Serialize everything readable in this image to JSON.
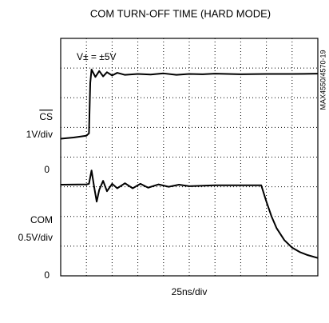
{
  "chart_data": {
    "type": "line",
    "title": "COM TURN-OFF TIME (HARD MODE)",
    "annotation": "V± = ±5V",
    "side_label": "MAX4550/4570-19",
    "x_label": "25ns/div",
    "y_labels": [
      "CS",
      "1V/div",
      "0",
      "COM",
      "0.5V/div",
      "0"
    ],
    "xlim": [
      0,
      10
    ],
    "ylim": [
      0,
      8
    ],
    "xticks": [
      0,
      1,
      2,
      3,
      4,
      5,
      6,
      7,
      8,
      9,
      10
    ],
    "yticks": [
      0,
      1,
      2,
      3,
      4,
      5,
      6,
      7,
      8
    ],
    "grid": true,
    "series": [
      {
        "color": "#000000",
        "x": [
          0,
          0.5,
          1.0,
          1.1,
          1.15,
          1.2,
          1.35,
          1.5,
          1.65,
          1.8,
          2.0,
          2.2,
          2.5,
          3,
          3.5,
          4,
          4.5,
          5,
          5.5,
          6,
          7,
          8,
          9,
          10
        ],
        "values": [
          4.62,
          4.66,
          4.72,
          4.8,
          6.5,
          6.95,
          6.7,
          6.9,
          6.72,
          6.86,
          6.75,
          6.84,
          6.77,
          6.8,
          6.78,
          6.82,
          6.77,
          6.8,
          6.79,
          6.81,
          6.79,
          6.8,
          6.8,
          6.81
        ]
      },
      {
        "color": "#000000",
        "x": [
          0,
          1,
          1.1,
          1.2,
          1.3,
          1.4,
          1.5,
          1.65,
          1.8,
          2.0,
          2.2,
          2.5,
          2.8,
          3.1,
          3.4,
          3.8,
          4.2,
          4.6,
          5,
          6,
          7,
          7.8,
          8.0,
          8.2,
          8.4,
          8.7,
          9,
          9.3,
          9.6,
          10
        ],
        "values": [
          3.07,
          3.08,
          3.1,
          3.55,
          3.0,
          2.5,
          2.9,
          3.2,
          2.85,
          3.1,
          2.95,
          3.12,
          2.95,
          3.1,
          2.97,
          3.08,
          3.0,
          3.07,
          3.02,
          3.05,
          3.05,
          3.05,
          2.5,
          2.0,
          1.6,
          1.2,
          0.95,
          0.8,
          0.7,
          0.6
        ]
      }
    ]
  }
}
